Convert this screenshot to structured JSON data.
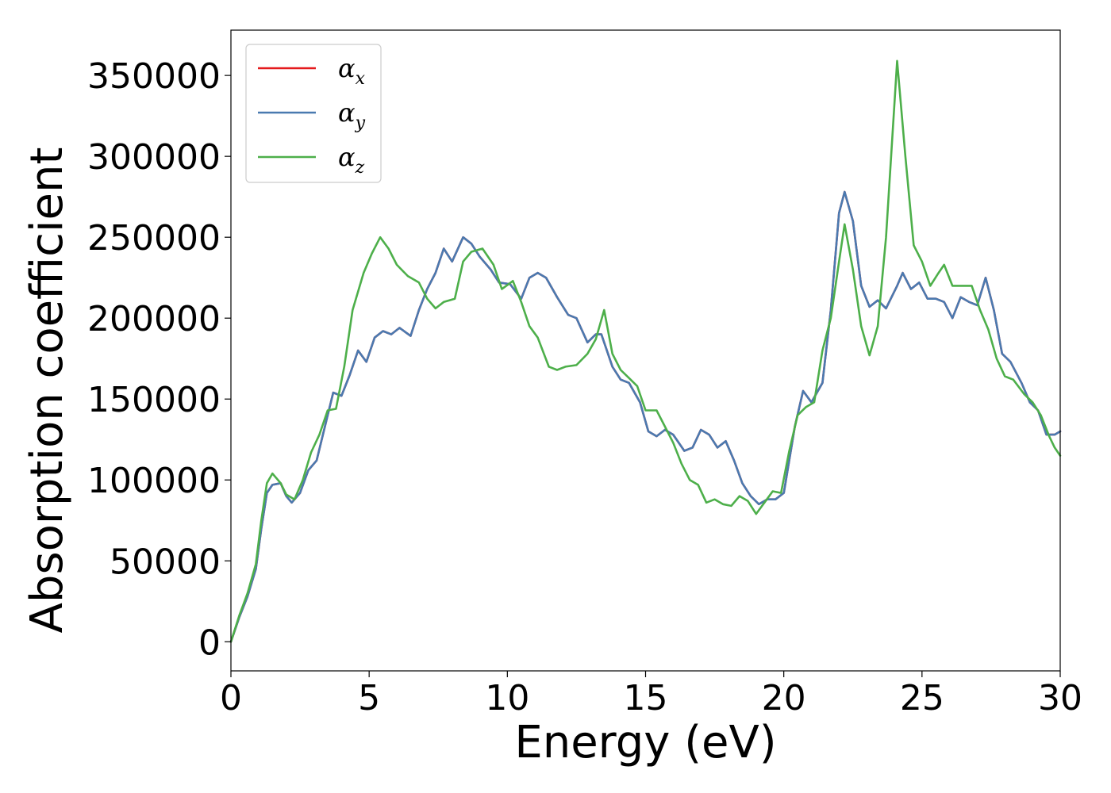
{
  "chart_data": {
    "type": "line",
    "title": "",
    "xlabel": "Energy (eV)",
    "ylabel": "Absorption coefficient",
    "xlim": [
      0,
      30
    ],
    "ylim": [
      -18000,
      378000
    ],
    "xticks": [
      0,
      5,
      10,
      15,
      20,
      25,
      30
    ],
    "yticks": [
      0,
      50000,
      100000,
      150000,
      200000,
      250000,
      300000,
      350000
    ],
    "grid": false,
    "legend_position": "top-left",
    "series": [
      {
        "name": "α_x",
        "legend_base": "α",
        "legend_sub": "x",
        "color": "#e41a1c",
        "points": [
          [
            0,
            0
          ],
          [
            0.3,
            15000
          ],
          [
            0.6,
            28000
          ],
          [
            0.9,
            45000
          ],
          [
            1.1,
            70000
          ],
          [
            1.3,
            92000
          ],
          [
            1.5,
            97000
          ],
          [
            1.8,
            98000
          ],
          [
            2.0,
            90000
          ],
          [
            2.2,
            86000
          ],
          [
            2.5,
            92000
          ],
          [
            2.8,
            106000
          ],
          [
            3.1,
            112000
          ],
          [
            3.4,
            133000
          ],
          [
            3.7,
            154000
          ],
          [
            4.0,
            152000
          ],
          [
            4.3,
            165000
          ],
          [
            4.6,
            180000
          ],
          [
            4.9,
            173000
          ],
          [
            5.2,
            188000
          ],
          [
            5.5,
            192000
          ],
          [
            5.8,
            190000
          ],
          [
            6.1,
            194000
          ],
          [
            6.5,
            189000
          ],
          [
            6.8,
            205000
          ],
          [
            7.1,
            218000
          ],
          [
            7.4,
            228000
          ],
          [
            7.7,
            243000
          ],
          [
            8.0,
            235000
          ],
          [
            8.4,
            250000
          ],
          [
            8.7,
            246000
          ],
          [
            9.0,
            238000
          ],
          [
            9.4,
            230000
          ],
          [
            9.7,
            222000
          ],
          [
            10.1,
            221000
          ],
          [
            10.5,
            212000
          ],
          [
            10.8,
            225000
          ],
          [
            11.1,
            228000
          ],
          [
            11.4,
            225000
          ],
          [
            11.8,
            213000
          ],
          [
            12.2,
            202000
          ],
          [
            12.5,
            200000
          ],
          [
            12.9,
            185000
          ],
          [
            13.2,
            190000
          ],
          [
            13.4,
            190000
          ],
          [
            13.8,
            170000
          ],
          [
            14.1,
            162000
          ],
          [
            14.4,
            160000
          ],
          [
            14.8,
            148000
          ],
          [
            15.1,
            130000
          ],
          [
            15.4,
            127000
          ],
          [
            15.7,
            131000
          ],
          [
            16.0,
            128000
          ],
          [
            16.4,
            118000
          ],
          [
            16.7,
            120000
          ],
          [
            17.0,
            131000
          ],
          [
            17.3,
            128000
          ],
          [
            17.6,
            120000
          ],
          [
            17.9,
            124000
          ],
          [
            18.2,
            112000
          ],
          [
            18.5,
            98000
          ],
          [
            18.8,
            90000
          ],
          [
            19.1,
            85000
          ],
          [
            19.4,
            88000
          ],
          [
            19.7,
            88000
          ],
          [
            20.0,
            92000
          ],
          [
            20.4,
            133000
          ],
          [
            20.7,
            155000
          ],
          [
            21.0,
            148000
          ],
          [
            21.4,
            160000
          ],
          [
            21.7,
            205000
          ],
          [
            22.0,
            265000
          ],
          [
            22.2,
            278000
          ],
          [
            22.5,
            260000
          ],
          [
            22.8,
            220000
          ],
          [
            23.1,
            207000
          ],
          [
            23.4,
            211000
          ],
          [
            23.7,
            206000
          ],
          [
            24.1,
            220000
          ],
          [
            24.3,
            228000
          ],
          [
            24.6,
            218000
          ],
          [
            24.9,
            222000
          ],
          [
            25.2,
            212000
          ],
          [
            25.5,
            212000
          ],
          [
            25.8,
            210000
          ],
          [
            26.1,
            200000
          ],
          [
            26.4,
            213000
          ],
          [
            26.7,
            210000
          ],
          [
            27.0,
            208000
          ],
          [
            27.3,
            225000
          ],
          [
            27.6,
            205000
          ],
          [
            27.9,
            178000
          ],
          [
            28.2,
            173000
          ],
          [
            28.6,
            160000
          ],
          [
            28.9,
            148000
          ],
          [
            29.2,
            143000
          ],
          [
            29.5,
            128000
          ],
          [
            29.8,
            128000
          ],
          [
            30.0,
            130000
          ]
        ]
      },
      {
        "name": "α_y",
        "legend_base": "α",
        "legend_sub": "y",
        "color": "#4a7ab0",
        "points": [
          [
            0,
            0
          ],
          [
            0.3,
            15000
          ],
          [
            0.6,
            28000
          ],
          [
            0.9,
            45000
          ],
          [
            1.1,
            70000
          ],
          [
            1.3,
            92000
          ],
          [
            1.5,
            97000
          ],
          [
            1.8,
            98000
          ],
          [
            2.0,
            90000
          ],
          [
            2.2,
            86000
          ],
          [
            2.5,
            92000
          ],
          [
            2.8,
            106000
          ],
          [
            3.1,
            112000
          ],
          [
            3.4,
            133000
          ],
          [
            3.7,
            154000
          ],
          [
            4.0,
            152000
          ],
          [
            4.3,
            165000
          ],
          [
            4.6,
            180000
          ],
          [
            4.9,
            173000
          ],
          [
            5.2,
            188000
          ],
          [
            5.5,
            192000
          ],
          [
            5.8,
            190000
          ],
          [
            6.1,
            194000
          ],
          [
            6.5,
            189000
          ],
          [
            6.8,
            205000
          ],
          [
            7.1,
            218000
          ],
          [
            7.4,
            228000
          ],
          [
            7.7,
            243000
          ],
          [
            8.0,
            235000
          ],
          [
            8.4,
            250000
          ],
          [
            8.7,
            246000
          ],
          [
            9.0,
            238000
          ],
          [
            9.4,
            230000
          ],
          [
            9.7,
            222000
          ],
          [
            10.1,
            221000
          ],
          [
            10.5,
            212000
          ],
          [
            10.8,
            225000
          ],
          [
            11.1,
            228000
          ],
          [
            11.4,
            225000
          ],
          [
            11.8,
            213000
          ],
          [
            12.2,
            202000
          ],
          [
            12.5,
            200000
          ],
          [
            12.9,
            185000
          ],
          [
            13.2,
            190000
          ],
          [
            13.4,
            190000
          ],
          [
            13.8,
            170000
          ],
          [
            14.1,
            162000
          ],
          [
            14.4,
            160000
          ],
          [
            14.8,
            148000
          ],
          [
            15.1,
            130000
          ],
          [
            15.4,
            127000
          ],
          [
            15.7,
            131000
          ],
          [
            16.0,
            128000
          ],
          [
            16.4,
            118000
          ],
          [
            16.7,
            120000
          ],
          [
            17.0,
            131000
          ],
          [
            17.3,
            128000
          ],
          [
            17.6,
            120000
          ],
          [
            17.9,
            124000
          ],
          [
            18.2,
            112000
          ],
          [
            18.5,
            98000
          ],
          [
            18.8,
            90000
          ],
          [
            19.1,
            85000
          ],
          [
            19.4,
            88000
          ],
          [
            19.7,
            88000
          ],
          [
            20.0,
            92000
          ],
          [
            20.4,
            133000
          ],
          [
            20.7,
            155000
          ],
          [
            21.0,
            148000
          ],
          [
            21.4,
            160000
          ],
          [
            21.7,
            205000
          ],
          [
            22.0,
            265000
          ],
          [
            22.2,
            278000
          ],
          [
            22.5,
            260000
          ],
          [
            22.8,
            220000
          ],
          [
            23.1,
            207000
          ],
          [
            23.4,
            211000
          ],
          [
            23.7,
            206000
          ],
          [
            24.1,
            220000
          ],
          [
            24.3,
            228000
          ],
          [
            24.6,
            218000
          ],
          [
            24.9,
            222000
          ],
          [
            25.2,
            212000
          ],
          [
            25.5,
            212000
          ],
          [
            25.8,
            210000
          ],
          [
            26.1,
            200000
          ],
          [
            26.4,
            213000
          ],
          [
            26.7,
            210000
          ],
          [
            27.0,
            208000
          ],
          [
            27.3,
            225000
          ],
          [
            27.6,
            205000
          ],
          [
            27.9,
            178000
          ],
          [
            28.2,
            173000
          ],
          [
            28.6,
            160000
          ],
          [
            28.9,
            148000
          ],
          [
            29.2,
            143000
          ],
          [
            29.5,
            128000
          ],
          [
            29.8,
            128000
          ],
          [
            30.0,
            130000
          ]
        ]
      },
      {
        "name": "α_z",
        "legend_base": "α",
        "legend_sub": "z",
        "color": "#4daf4a",
        "points": [
          [
            0,
            0
          ],
          [
            0.3,
            16000
          ],
          [
            0.6,
            30000
          ],
          [
            0.9,
            48000
          ],
          [
            1.1,
            75000
          ],
          [
            1.3,
            98000
          ],
          [
            1.5,
            104000
          ],
          [
            1.8,
            98000
          ],
          [
            2.0,
            91000
          ],
          [
            2.3,
            88000
          ],
          [
            2.6,
            100000
          ],
          [
            2.9,
            117000
          ],
          [
            3.2,
            128000
          ],
          [
            3.5,
            143000
          ],
          [
            3.8,
            144000
          ],
          [
            4.1,
            170000
          ],
          [
            4.4,
            205000
          ],
          [
            4.8,
            228000
          ],
          [
            5.1,
            240000
          ],
          [
            5.4,
            250000
          ],
          [
            5.7,
            243000
          ],
          [
            6.0,
            233000
          ],
          [
            6.4,
            226000
          ],
          [
            6.8,
            222000
          ],
          [
            7.1,
            212000
          ],
          [
            7.4,
            206000
          ],
          [
            7.7,
            210000
          ],
          [
            8.1,
            212000
          ],
          [
            8.4,
            235000
          ],
          [
            8.7,
            241000
          ],
          [
            9.1,
            243000
          ],
          [
            9.5,
            233000
          ],
          [
            9.8,
            218000
          ],
          [
            10.2,
            223000
          ],
          [
            10.5,
            210000
          ],
          [
            10.8,
            195000
          ],
          [
            11.1,
            188000
          ],
          [
            11.5,
            170000
          ],
          [
            11.8,
            168000
          ],
          [
            12.1,
            170000
          ],
          [
            12.5,
            171000
          ],
          [
            12.9,
            178000
          ],
          [
            13.2,
            187000
          ],
          [
            13.5,
            205000
          ],
          [
            13.8,
            178000
          ],
          [
            14.1,
            168000
          ],
          [
            14.4,
            163000
          ],
          [
            14.7,
            158000
          ],
          [
            15.0,
            143000
          ],
          [
            15.4,
            143000
          ],
          [
            15.7,
            133000
          ],
          [
            16.0,
            123000
          ],
          [
            16.3,
            110000
          ],
          [
            16.6,
            100000
          ],
          [
            16.9,
            97000
          ],
          [
            17.2,
            86000
          ],
          [
            17.5,
            88000
          ],
          [
            17.8,
            85000
          ],
          [
            18.1,
            84000
          ],
          [
            18.4,
            90000
          ],
          [
            18.7,
            87000
          ],
          [
            19.0,
            79000
          ],
          [
            19.3,
            86000
          ],
          [
            19.6,
            93000
          ],
          [
            19.9,
            92000
          ],
          [
            20.2,
            118000
          ],
          [
            20.5,
            140000
          ],
          [
            20.8,
            145000
          ],
          [
            21.1,
            148000
          ],
          [
            21.4,
            180000
          ],
          [
            21.7,
            200000
          ],
          [
            22.0,
            235000
          ],
          [
            22.2,
            258000
          ],
          [
            22.5,
            230000
          ],
          [
            22.8,
            195000
          ],
          [
            23.1,
            177000
          ],
          [
            23.4,
            195000
          ],
          [
            23.7,
            250000
          ],
          [
            24.1,
            359000
          ],
          [
            24.4,
            300000
          ],
          [
            24.7,
            245000
          ],
          [
            25.0,
            235000
          ],
          [
            25.3,
            220000
          ],
          [
            25.6,
            228000
          ],
          [
            25.8,
            233000
          ],
          [
            26.1,
            220000
          ],
          [
            26.5,
            220000
          ],
          [
            26.8,
            220000
          ],
          [
            27.1,
            205000
          ],
          [
            27.4,
            193000
          ],
          [
            27.7,
            175000
          ],
          [
            28.0,
            164000
          ],
          [
            28.3,
            162000
          ],
          [
            28.7,
            153000
          ],
          [
            29.0,
            148000
          ],
          [
            29.3,
            140000
          ],
          [
            29.6,
            127000
          ],
          [
            29.8,
            120000
          ],
          [
            30.0,
            115000
          ]
        ]
      }
    ]
  }
}
